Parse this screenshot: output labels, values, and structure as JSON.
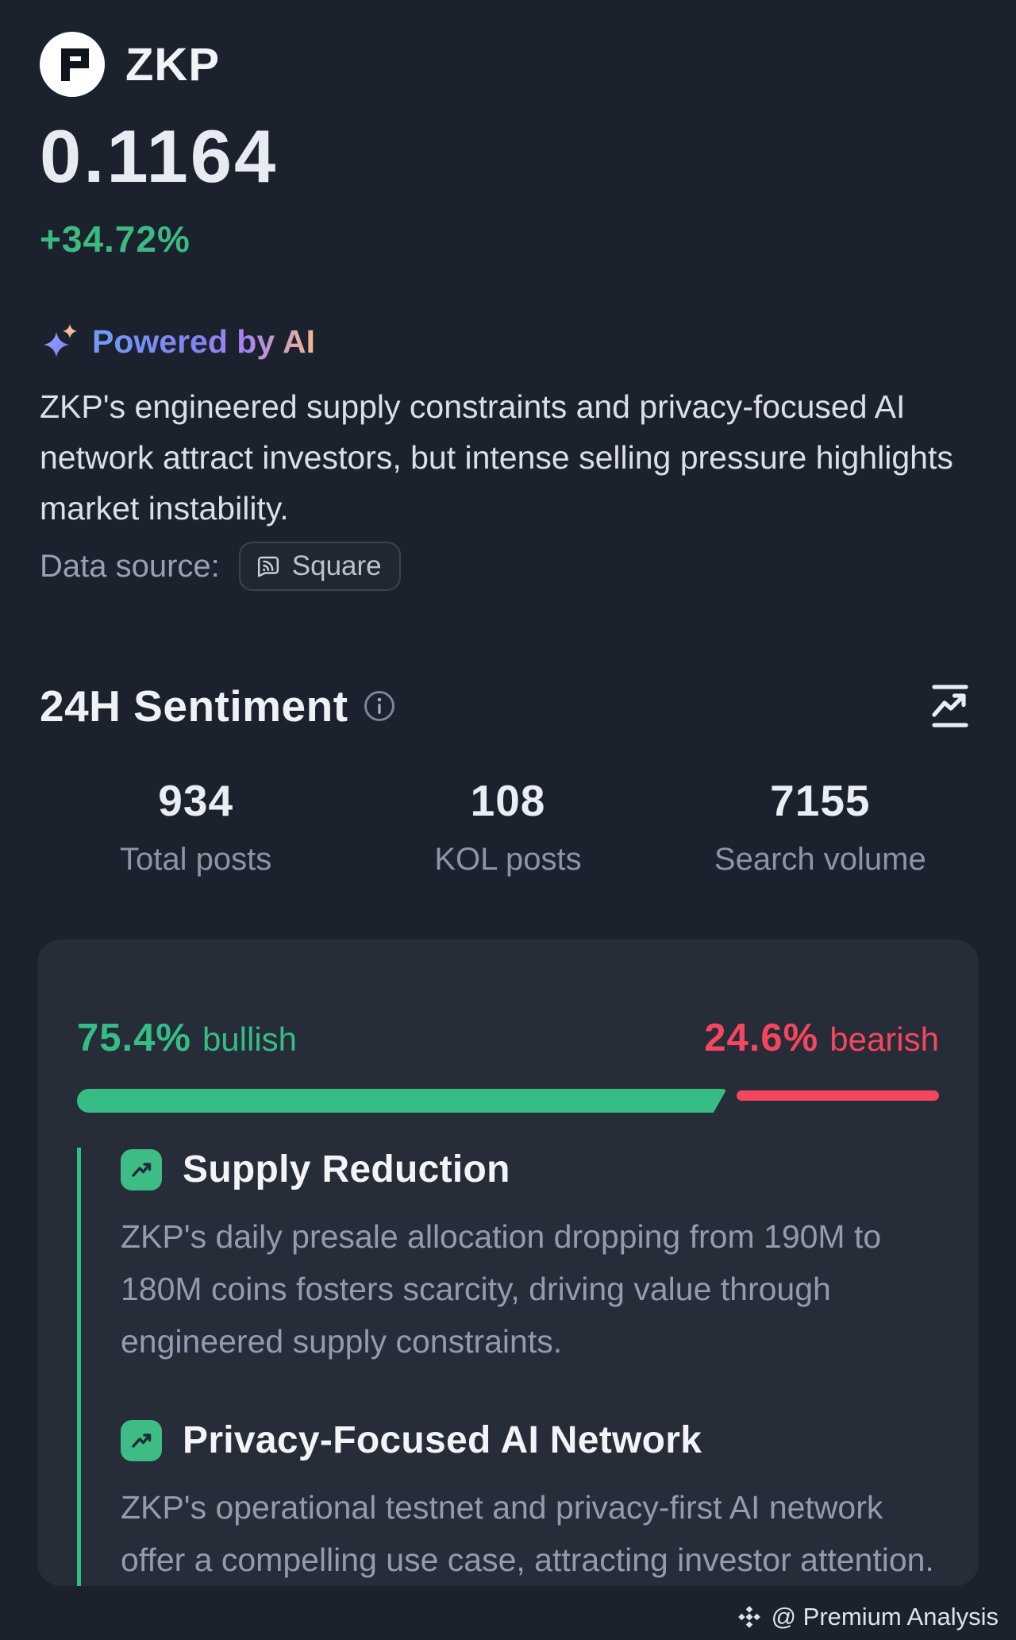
{
  "coin": {
    "symbol": "ZKP",
    "price": "0.1164",
    "change": "+34.72%"
  },
  "ai": {
    "badge": "Powered by AI",
    "summary": "ZKP's engineered supply constraints and privacy-focused AI network attract investors, but intense selling pressure highlights market instability.",
    "data_source_label": "Data source:",
    "data_source_button": "Square"
  },
  "sentiment": {
    "title": "24H Sentiment",
    "stats": [
      {
        "value": "934",
        "label": "Total posts"
      },
      {
        "value": "108",
        "label": "KOL posts"
      },
      {
        "value": "7155",
        "label": "Search volume"
      }
    ],
    "bullish_pct": "75.4%",
    "bullish_label": "bullish",
    "bullish_value": 75.4,
    "bearish_pct": "24.6%",
    "bearish_label": "bearish",
    "bearish_value": 24.6,
    "insights": [
      {
        "title": "Supply Reduction",
        "body": "ZKP's daily presale allocation dropping from 190M to 180M coins fosters scarcity, driving value through engineered supply constraints."
      },
      {
        "title": "Privacy-Focused AI Network",
        "body": "ZKP's operational testnet and privacy-first AI network offer a compelling use case, attracting investor attention."
      }
    ]
  },
  "footer": {
    "watermark": "@ Premium Analysis"
  },
  "colors": {
    "bullish": "#35bd85",
    "bearish": "#f4465d",
    "change_green": "#3cba81",
    "page_bg": "#1c222d",
    "card_bg": "#262c38"
  }
}
